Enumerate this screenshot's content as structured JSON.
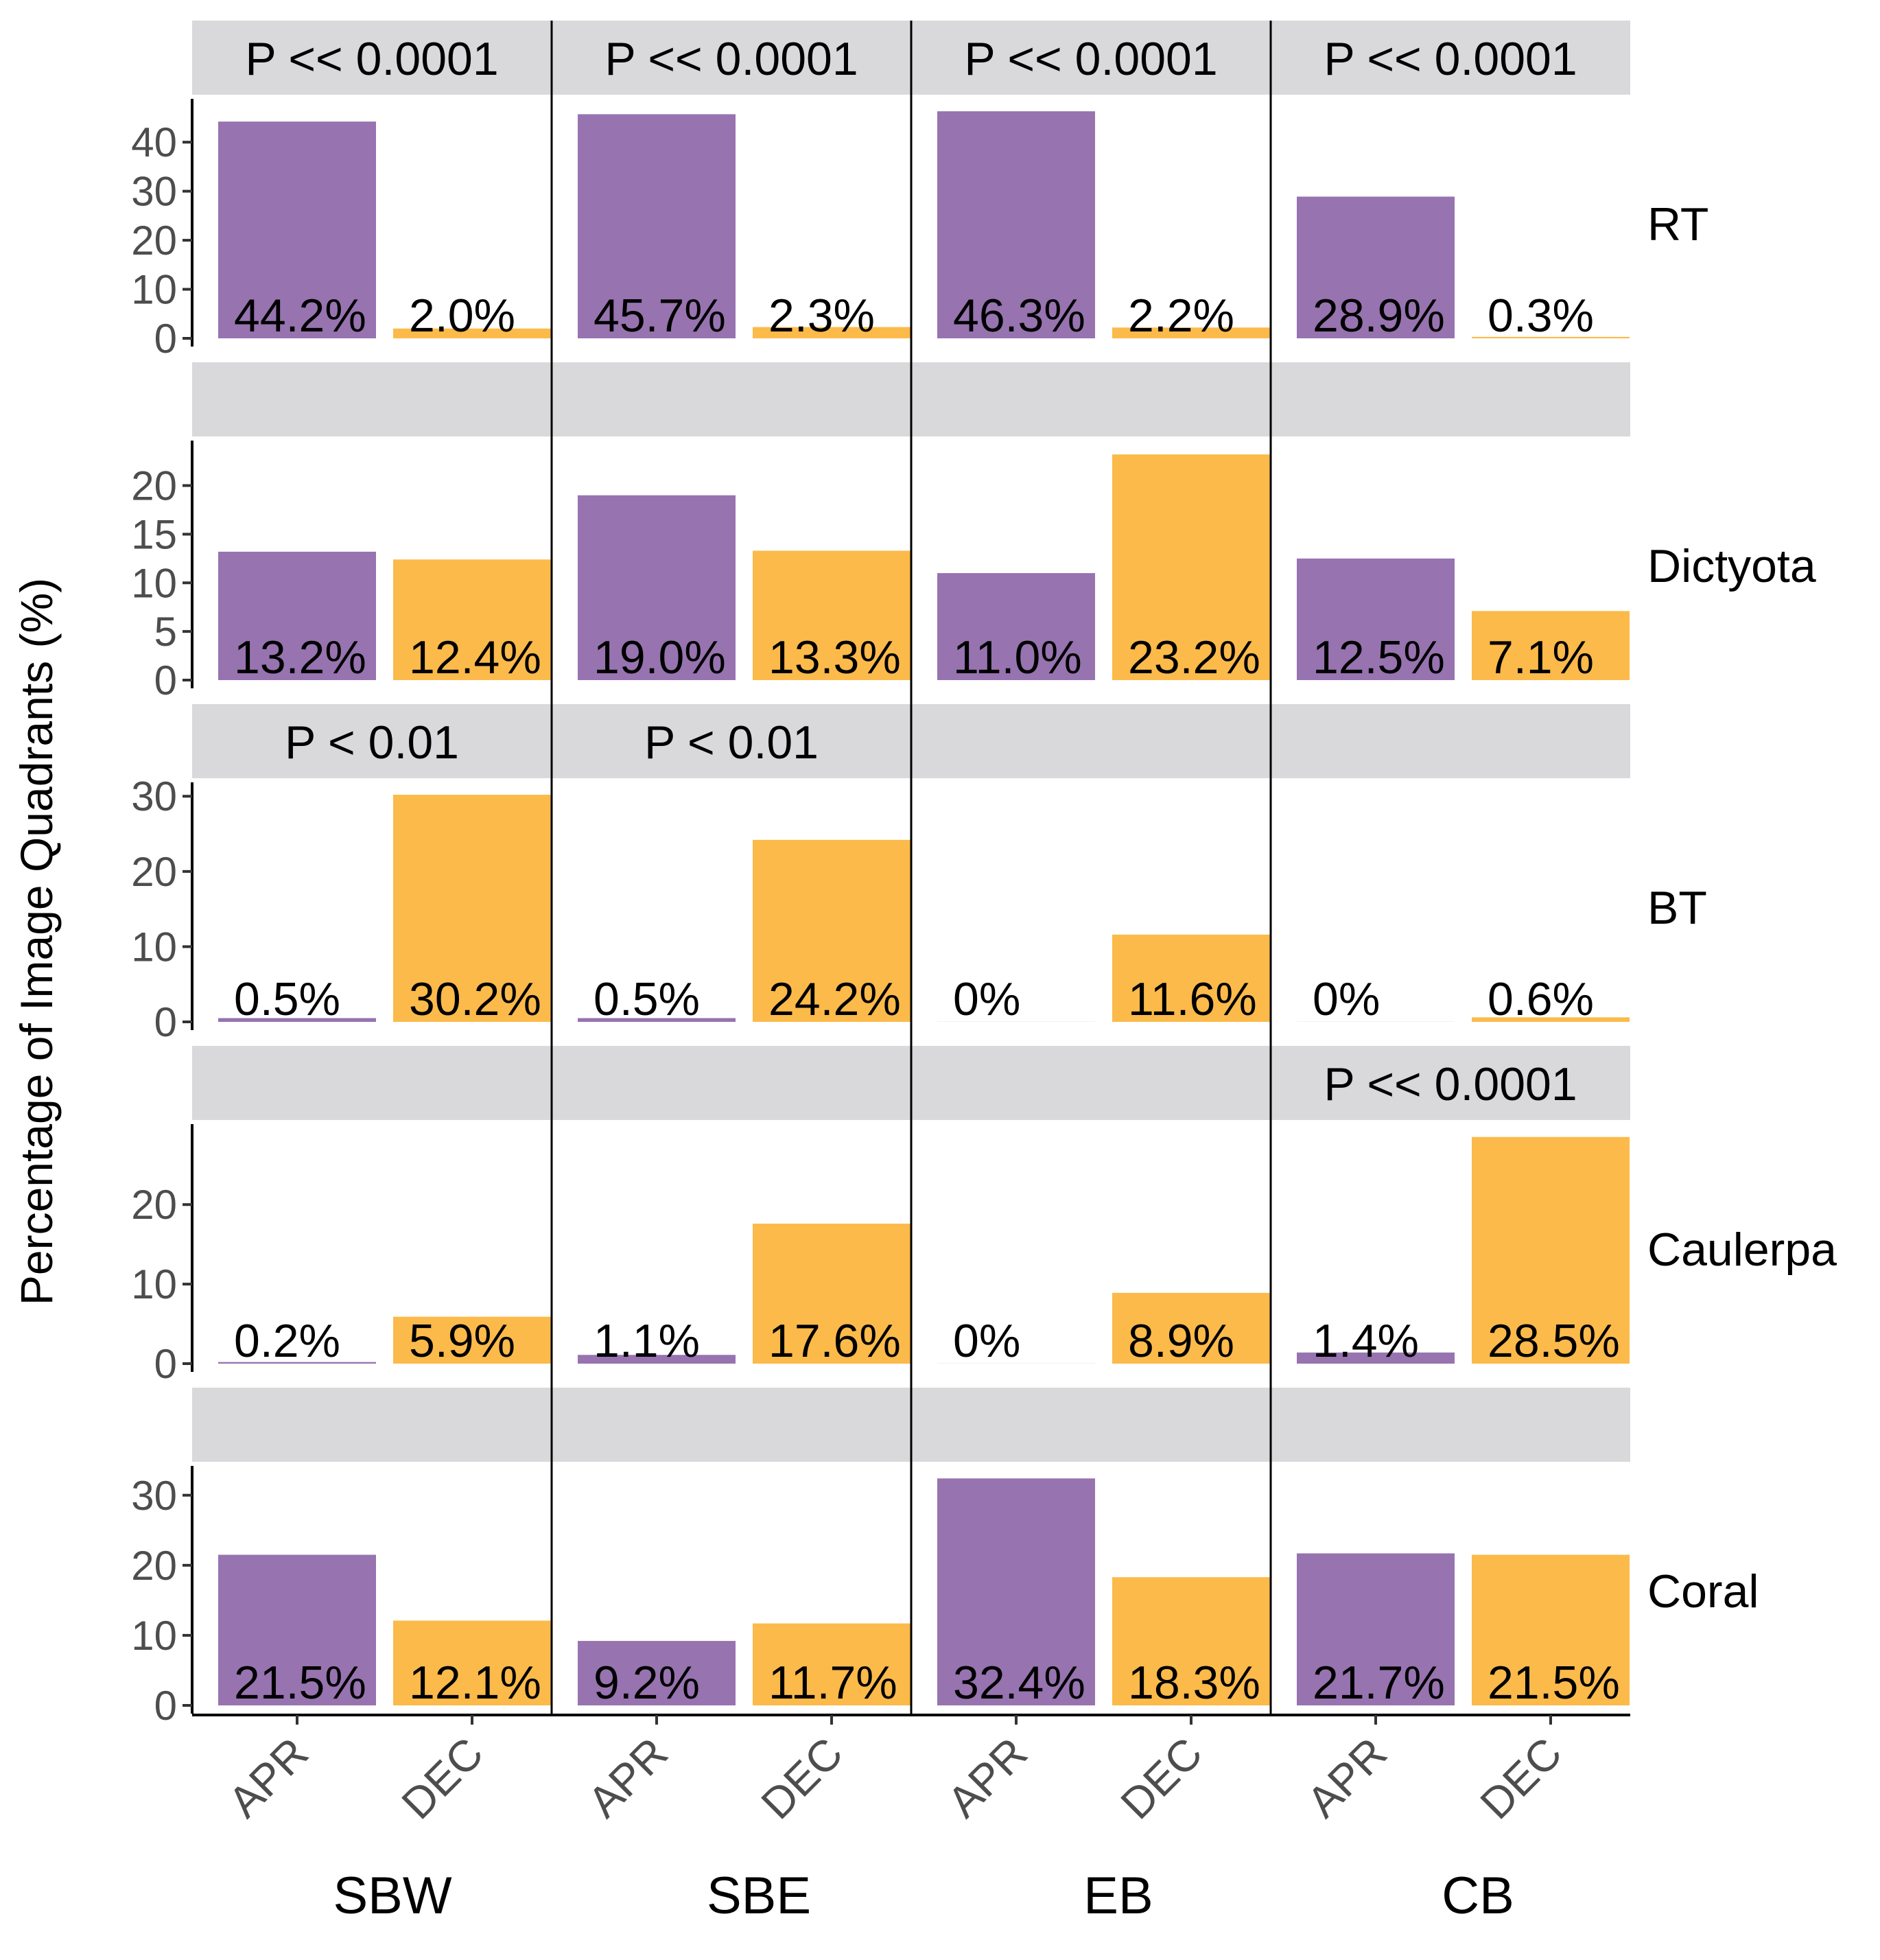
{
  "chart_data": {
    "type": "bar",
    "ylabel": "Percentage of Image Quadrants (%)",
    "xlabel": "",
    "columns": [
      "SBW",
      "SBE",
      "EB",
      "CB"
    ],
    "rows": [
      "RT",
      "Dictyota",
      "BT",
      "Caulerpa",
      "Coral"
    ],
    "categories": [
      "APR",
      "DEC"
    ],
    "colors": {
      "APR": "#9773b0",
      "DEC": "#fbba4a"
    },
    "strip_color": "#d9d9db",
    "grid": false,
    "legend": "none",
    "panels": [
      {
        "row": "RT",
        "ylim": [
          0,
          48
        ],
        "yticks": [
          "0",
          "10",
          "20",
          "30",
          "40"
        ],
        "strip_labels": [
          "P << 0.0001",
          "P << 0.0001",
          "P << 0.0001",
          "P << 0.0001"
        ],
        "values": [
          [
            44.2,
            2.0
          ],
          [
            45.7,
            2.3
          ],
          [
            46.3,
            2.2
          ],
          [
            28.9,
            0.3
          ]
        ],
        "labels": [
          [
            "44.2%",
            "2.0%"
          ],
          [
            "45.7%",
            "2.3%"
          ],
          [
            "46.3%",
            "2.2%"
          ],
          [
            "28.9%",
            "0.3%"
          ]
        ]
      },
      {
        "row": "Dictyota",
        "ylim": [
          0,
          24.2
        ],
        "yticks": [
          "0",
          "5",
          "10",
          "15",
          "20"
        ],
        "strip_labels": [
          "",
          "",
          "",
          ""
        ],
        "values": [
          [
            13.2,
            12.4
          ],
          [
            19.0,
            13.3
          ],
          [
            11.0,
            23.2
          ],
          [
            12.5,
            7.1
          ]
        ],
        "labels": [
          [
            "13.2%",
            "12.4%"
          ],
          [
            "19.0%",
            "13.3%"
          ],
          [
            "11.0%",
            "23.2%"
          ],
          [
            "12.5%",
            "7.1%"
          ]
        ]
      },
      {
        "row": "BT",
        "ylim": [
          0,
          31.3
        ],
        "yticks": [
          "0",
          "10",
          "20",
          "30"
        ],
        "strip_labels": [
          "P < 0.01",
          "P < 0.01",
          "",
          ""
        ],
        "values": [
          [
            0.5,
            30.2
          ],
          [
            0.5,
            24.2
          ],
          [
            0,
            11.6
          ],
          [
            0,
            0.6
          ]
        ],
        "labels": [
          [
            "0.5%",
            "30.2%"
          ],
          [
            "0.5%",
            "24.2%"
          ],
          [
            "0%",
            "11.6%"
          ],
          [
            "0%",
            "0.6%"
          ]
        ]
      },
      {
        "row": "Caulerpa",
        "ylim": [
          0,
          29.6
        ],
        "yticks": [
          "0",
          "10",
          "20"
        ],
        "strip_labels": [
          "",
          "",
          "",
          "P << 0.0001"
        ],
        "values": [
          [
            0.2,
            5.9
          ],
          [
            1.1,
            17.6
          ],
          [
            0,
            8.9
          ],
          [
            1.4,
            28.5
          ]
        ],
        "labels": [
          [
            "0.2%",
            "5.9%"
          ],
          [
            "1.1%",
            "17.6%"
          ],
          [
            "0%",
            "8.9%"
          ],
          [
            "1.4%",
            "28.5%"
          ]
        ]
      },
      {
        "row": "Coral",
        "ylim": [
          0,
          33.6
        ],
        "yticks": [
          "0",
          "10",
          "20",
          "30"
        ],
        "strip_labels": [
          "",
          "",
          "",
          ""
        ],
        "values": [
          [
            21.5,
            12.1
          ],
          [
            9.2,
            11.7
          ],
          [
            32.4,
            18.3
          ],
          [
            21.7,
            21.5
          ]
        ],
        "labels": [
          [
            "21.5%",
            "12.1%"
          ],
          [
            "9.2%",
            "11.7%"
          ],
          [
            "32.4%",
            "18.3%"
          ],
          [
            "21.7%",
            "21.5%"
          ]
        ]
      }
    ]
  }
}
